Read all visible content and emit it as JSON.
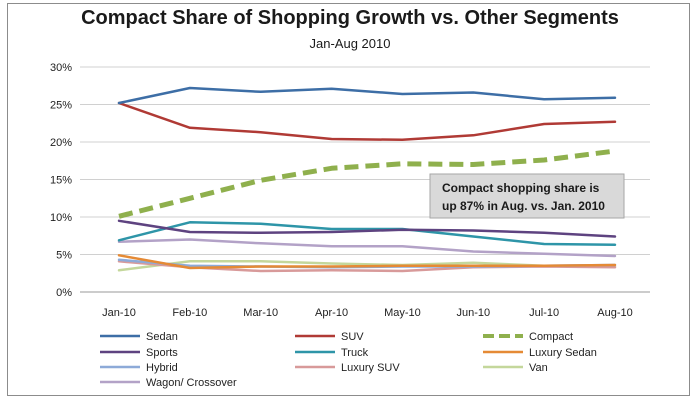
{
  "chart_data": {
    "type": "line",
    "title": "Compact Share of Shopping Growth vs. Other Segments",
    "subtitle": "Jan-Aug 2010",
    "x": [
      "Jan-10",
      "Feb-10",
      "Mar-10",
      "Apr-10",
      "May-10",
      "Jun-10",
      "Jul-10",
      "Aug-10"
    ],
    "ylim": [
      0,
      30
    ],
    "yticks": [
      "0%",
      "5%",
      "10%",
      "15%",
      "20%",
      "25%",
      "30%"
    ],
    "grid": true,
    "legend_placement": "bottom",
    "annotation": [
      "Compact shopping share is",
      "up 87% in Aug. vs. Jan. 2010"
    ],
    "series": [
      {
        "name": "Sedan",
        "color": "#3d6ea6",
        "dashed": false,
        "values": [
          25.2,
          27.2,
          26.7,
          27.1,
          26.4,
          26.6,
          25.7,
          25.9
        ]
      },
      {
        "name": "SUV",
        "color": "#b03a35",
        "dashed": false,
        "values": [
          25.2,
          21.9,
          21.3,
          20.4,
          20.3,
          20.9,
          22.4,
          22.7
        ]
      },
      {
        "name": "Compact",
        "color": "#8fb04d",
        "dashed": true,
        "values": [
          10.1,
          12.5,
          14.9,
          16.5,
          17.1,
          17.0,
          17.6,
          18.8
        ]
      },
      {
        "name": "Sports",
        "color": "#5e4380",
        "dashed": false,
        "values": [
          9.5,
          8.0,
          7.9,
          8.0,
          8.3,
          8.2,
          7.9,
          7.4
        ]
      },
      {
        "name": "Truck",
        "color": "#2e95a8",
        "dashed": false,
        "values": [
          6.9,
          9.3,
          9.1,
          8.4,
          8.4,
          7.4,
          6.4,
          6.3
        ]
      },
      {
        "name": "Luxury Sedan",
        "color": "#e58a35",
        "dashed": false,
        "values": [
          4.9,
          3.2,
          3.4,
          3.4,
          3.5,
          3.5,
          3.5,
          3.6
        ]
      },
      {
        "name": "Hybrid",
        "color": "#8daad8",
        "dashed": false,
        "values": [
          4.3,
          3.5,
          3.4,
          3.3,
          3.4,
          3.4,
          3.5,
          3.6
        ]
      },
      {
        "name": "Luxury SUV",
        "color": "#d89a9a",
        "dashed": false,
        "values": [
          4.1,
          3.3,
          2.8,
          2.9,
          2.8,
          3.3,
          3.4,
          3.3
        ]
      },
      {
        "name": "Van",
        "color": "#c4d79b",
        "dashed": false,
        "values": [
          2.9,
          4.1,
          4.1,
          3.8,
          3.6,
          3.9,
          3.5,
          3.4
        ]
      },
      {
        "name": "Wagon/ Crossover",
        "color": "#b3a2c7",
        "dashed": false,
        "values": [
          6.7,
          7.0,
          6.5,
          6.1,
          6.1,
          5.4,
          5.1,
          4.8
        ]
      }
    ]
  }
}
